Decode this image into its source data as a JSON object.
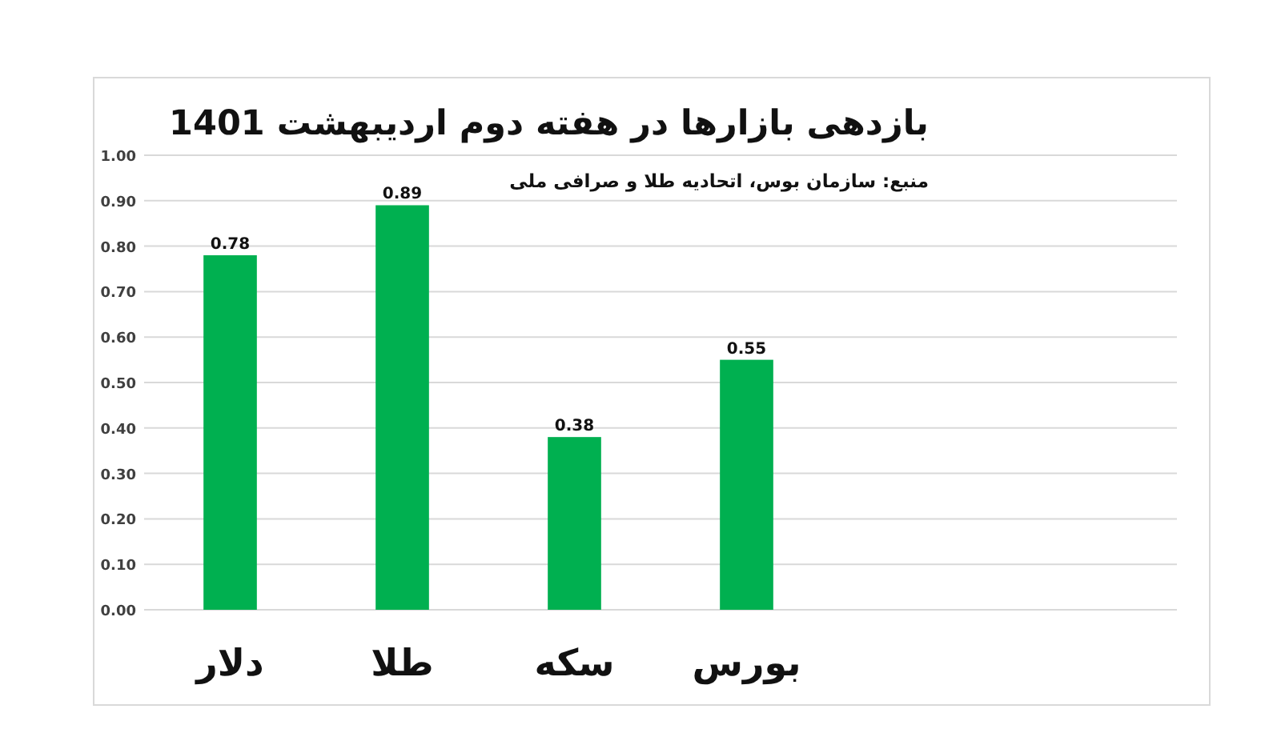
{
  "chart_data": {
    "type": "bar",
    "title": "بازدهی بازارها در هفته دوم اردیبهشت 1401",
    "annotations": [
      "منبع: سازمان بوس، اتحادیه طلا و صرافی ملی"
    ],
    "categories": [
      "دلار",
      "طلا",
      "سکه",
      "بورس",
      null,
      null
    ],
    "values": [
      0.78,
      0.89,
      0.38,
      0.55,
      null,
      null
    ],
    "color": "#00b050",
    "ylim": [
      0,
      1
    ],
    "yticks": [
      {
        "value": 0,
        "label": "0.00"
      },
      {
        "value": 0.1,
        "label": "0.10"
      },
      {
        "value": 0.2,
        "label": "0.20"
      },
      {
        "value": 0.3,
        "label": "0.30"
      },
      {
        "value": 0.4,
        "label": "0.40"
      },
      {
        "value": 0.5,
        "label": "0.50"
      },
      {
        "value": 0.6,
        "label": "0.60"
      },
      {
        "value": 0.7,
        "label": "0.70"
      },
      {
        "value": 0.8,
        "label": "0.80"
      },
      {
        "value": 0.9,
        "label": "0.90"
      },
      {
        "value": 1,
        "label": "1.00"
      }
    ],
    "grid": "y",
    "data_labels": true
  }
}
